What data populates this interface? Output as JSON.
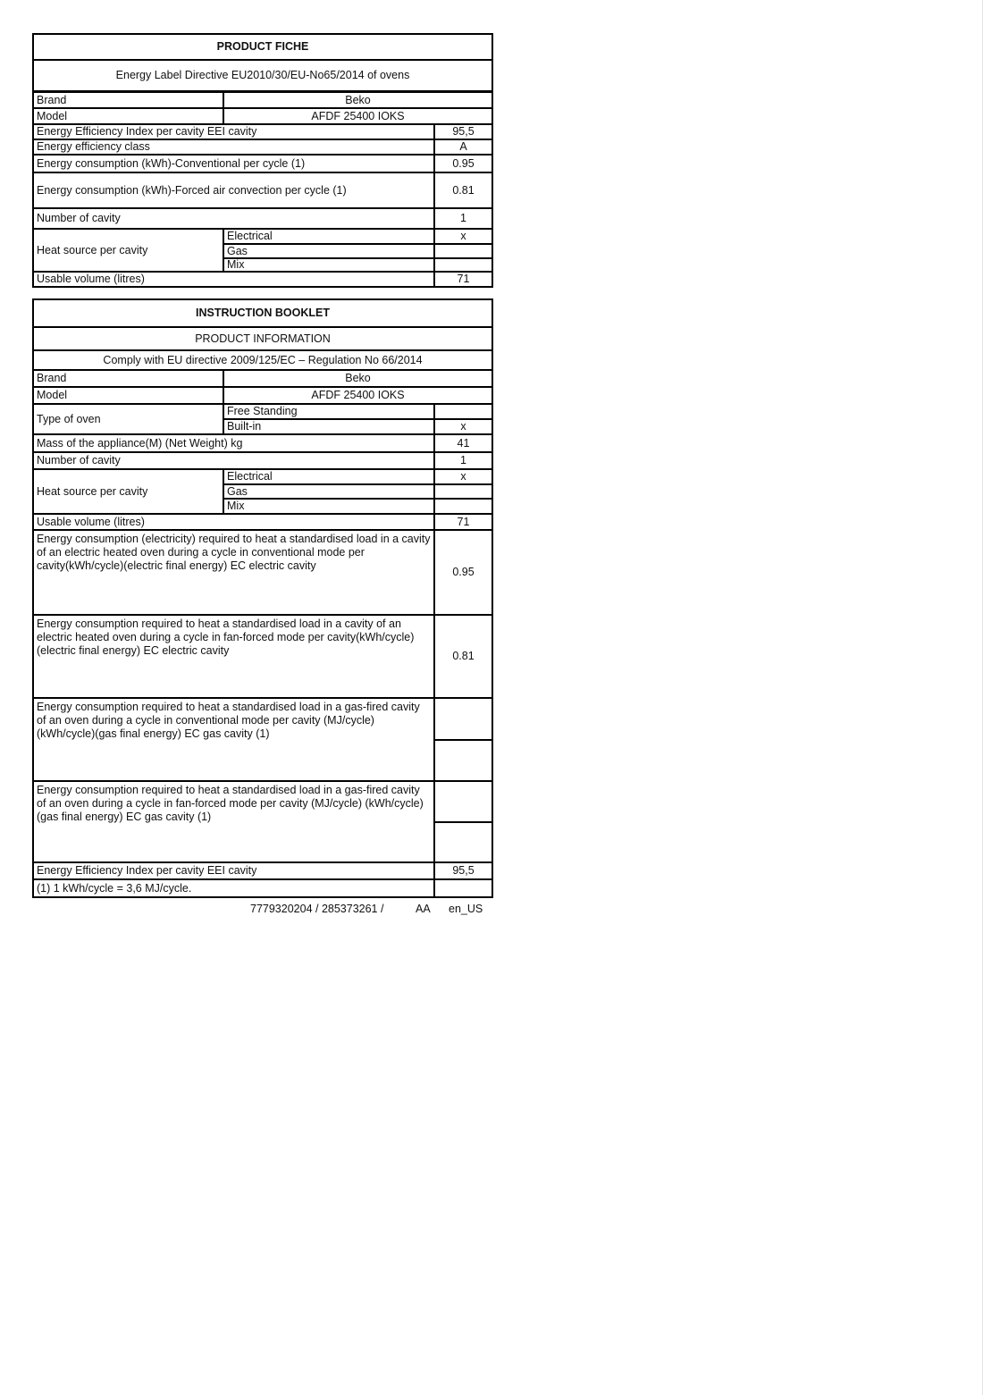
{
  "fiche": {
    "title": "PRODUCT FICHE",
    "subtitle": "Energy Label Directive EU2010/30/EU-No65/2014 of ovens",
    "brand_label": "Brand",
    "brand": "Beko",
    "model_label": "Model",
    "model": "AFDF 25400 IOKS",
    "eei_label": "Energy Efficiency Index per cavity EEI cavity",
    "eei": "95,5",
    "class_label": "Energy efficiency class",
    "class": "A",
    "conv_label": "Energy consumption (kWh)-Conventional per cycle (1)",
    "conv": "0.95",
    "forced_label": "Energy consumption (kWh)-Forced air convection per cycle (1)",
    "forced": "0.81",
    "cavity_label": "Number of cavity",
    "cavity": "1",
    "heat_label": "Heat source per cavity",
    "electrical_label": "Electrical",
    "electrical": "x",
    "gas_label": "Gas",
    "gas": "",
    "mix_label": "Mix",
    "mix": "",
    "volume_label": "Usable volume (litres)",
    "volume": "71"
  },
  "booklet": {
    "title": "INSTRUCTION BOOKLET",
    "subtitle": "PRODUCT INFORMATION",
    "directive": "Comply with EU directive 2009/125/EC – Regulation No 66/2014",
    "brand_label": "Brand",
    "brand": "Beko",
    "model_label": "Model",
    "model": "AFDF 25400 IOKS",
    "type_label": "Type of oven",
    "free_label": "Free Standing",
    "free": "",
    "builtin_label": "Built-in",
    "builtin": "x",
    "mass_label": "Mass of the appliance(M) (Net Weight) kg",
    "mass": "41",
    "cavity_label": "Number of cavity",
    "cavity": "1",
    "heat_label": "Heat source per cavity",
    "electrical_label": "Electrical",
    "electrical": "x",
    "gas_label": "Gas",
    "gas": "",
    "mix_label": "Mix",
    "mix": "",
    "volume_label": "Usable volume (litres)",
    "volume": "71",
    "ec_elec_label": "Energy consumption (electricity) required to heat a standardised load in a cavity of an electric heated oven during a cycle in conventional mode per cavity(kWh/cycle)(electric final energy) EC electric cavity",
    "ec_elec": "0.95",
    "ec_fan_label": "Energy consumption required to heat a standardised load in a cavity of an electric heated oven during a cycle in fan-forced mode per cavity(kWh/cycle)(electric final energy) EC electric cavity",
    "ec_fan": "0.81",
    "ec_gas_conv_label": "Energy consumption required to heat a standardised load in a gas-fired cavity of an oven during a cycle in conventional mode per cavity (MJ/cycle) (kWh/cycle)(gas final energy) EC gas cavity (1)",
    "ec_gas_conv_mj": "",
    "ec_gas_conv_kwh": "",
    "ec_gas_fan_label": "Energy consumption required to heat a standardised load in a gas-fired cavity of an oven during a cycle in fan-forced mode per cavity (MJ/cycle) (kWh/cycle)(gas final energy) EC gas cavity (1)",
    "ec_gas_fan_mj": "",
    "ec_gas_fan_kwh": "",
    "eei_label": "Energy Efficiency Index per cavity EEI cavity",
    "eei": "95,5",
    "footnote": "(1) 1 kWh/cycle = 3,6 MJ/cycle.",
    "footnote_value": ""
  },
  "footer": {
    "code": "7779320204  / 285373261 /",
    "revision": "AA",
    "locale": "en_US"
  }
}
